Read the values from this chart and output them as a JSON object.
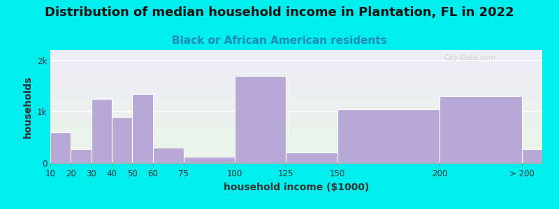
{
  "title": "Distribution of median household income in Plantation, FL in 2022",
  "subtitle": "Black or African American residents",
  "xlabel": "household income ($1000)",
  "ylabel": "households",
  "background_outer": "#00EEEE",
  "bar_color": "#b8a8d8",
  "bar_edge_color": "#b8a8d8",
  "watermark": "City-Data.com",
  "title_fontsize": 13,
  "subtitle_fontsize": 11,
  "axis_label_fontsize": 10,
  "bin_edges": [
    10,
    20,
    30,
    40,
    50,
    60,
    75,
    100,
    125,
    150,
    200,
    240
  ],
  "bin_labels": [
    "10",
    "20",
    "30",
    "40",
    "50",
    "60",
    "75",
    "100",
    "125",
    "150",
    "200",
    "> 200"
  ],
  "values": [
    600,
    270,
    1250,
    900,
    1350,
    300,
    120,
    1700,
    200,
    1050,
    1300,
    270
  ],
  "ylim": [
    0,
    2200
  ],
  "xlim": [
    10,
    250
  ]
}
